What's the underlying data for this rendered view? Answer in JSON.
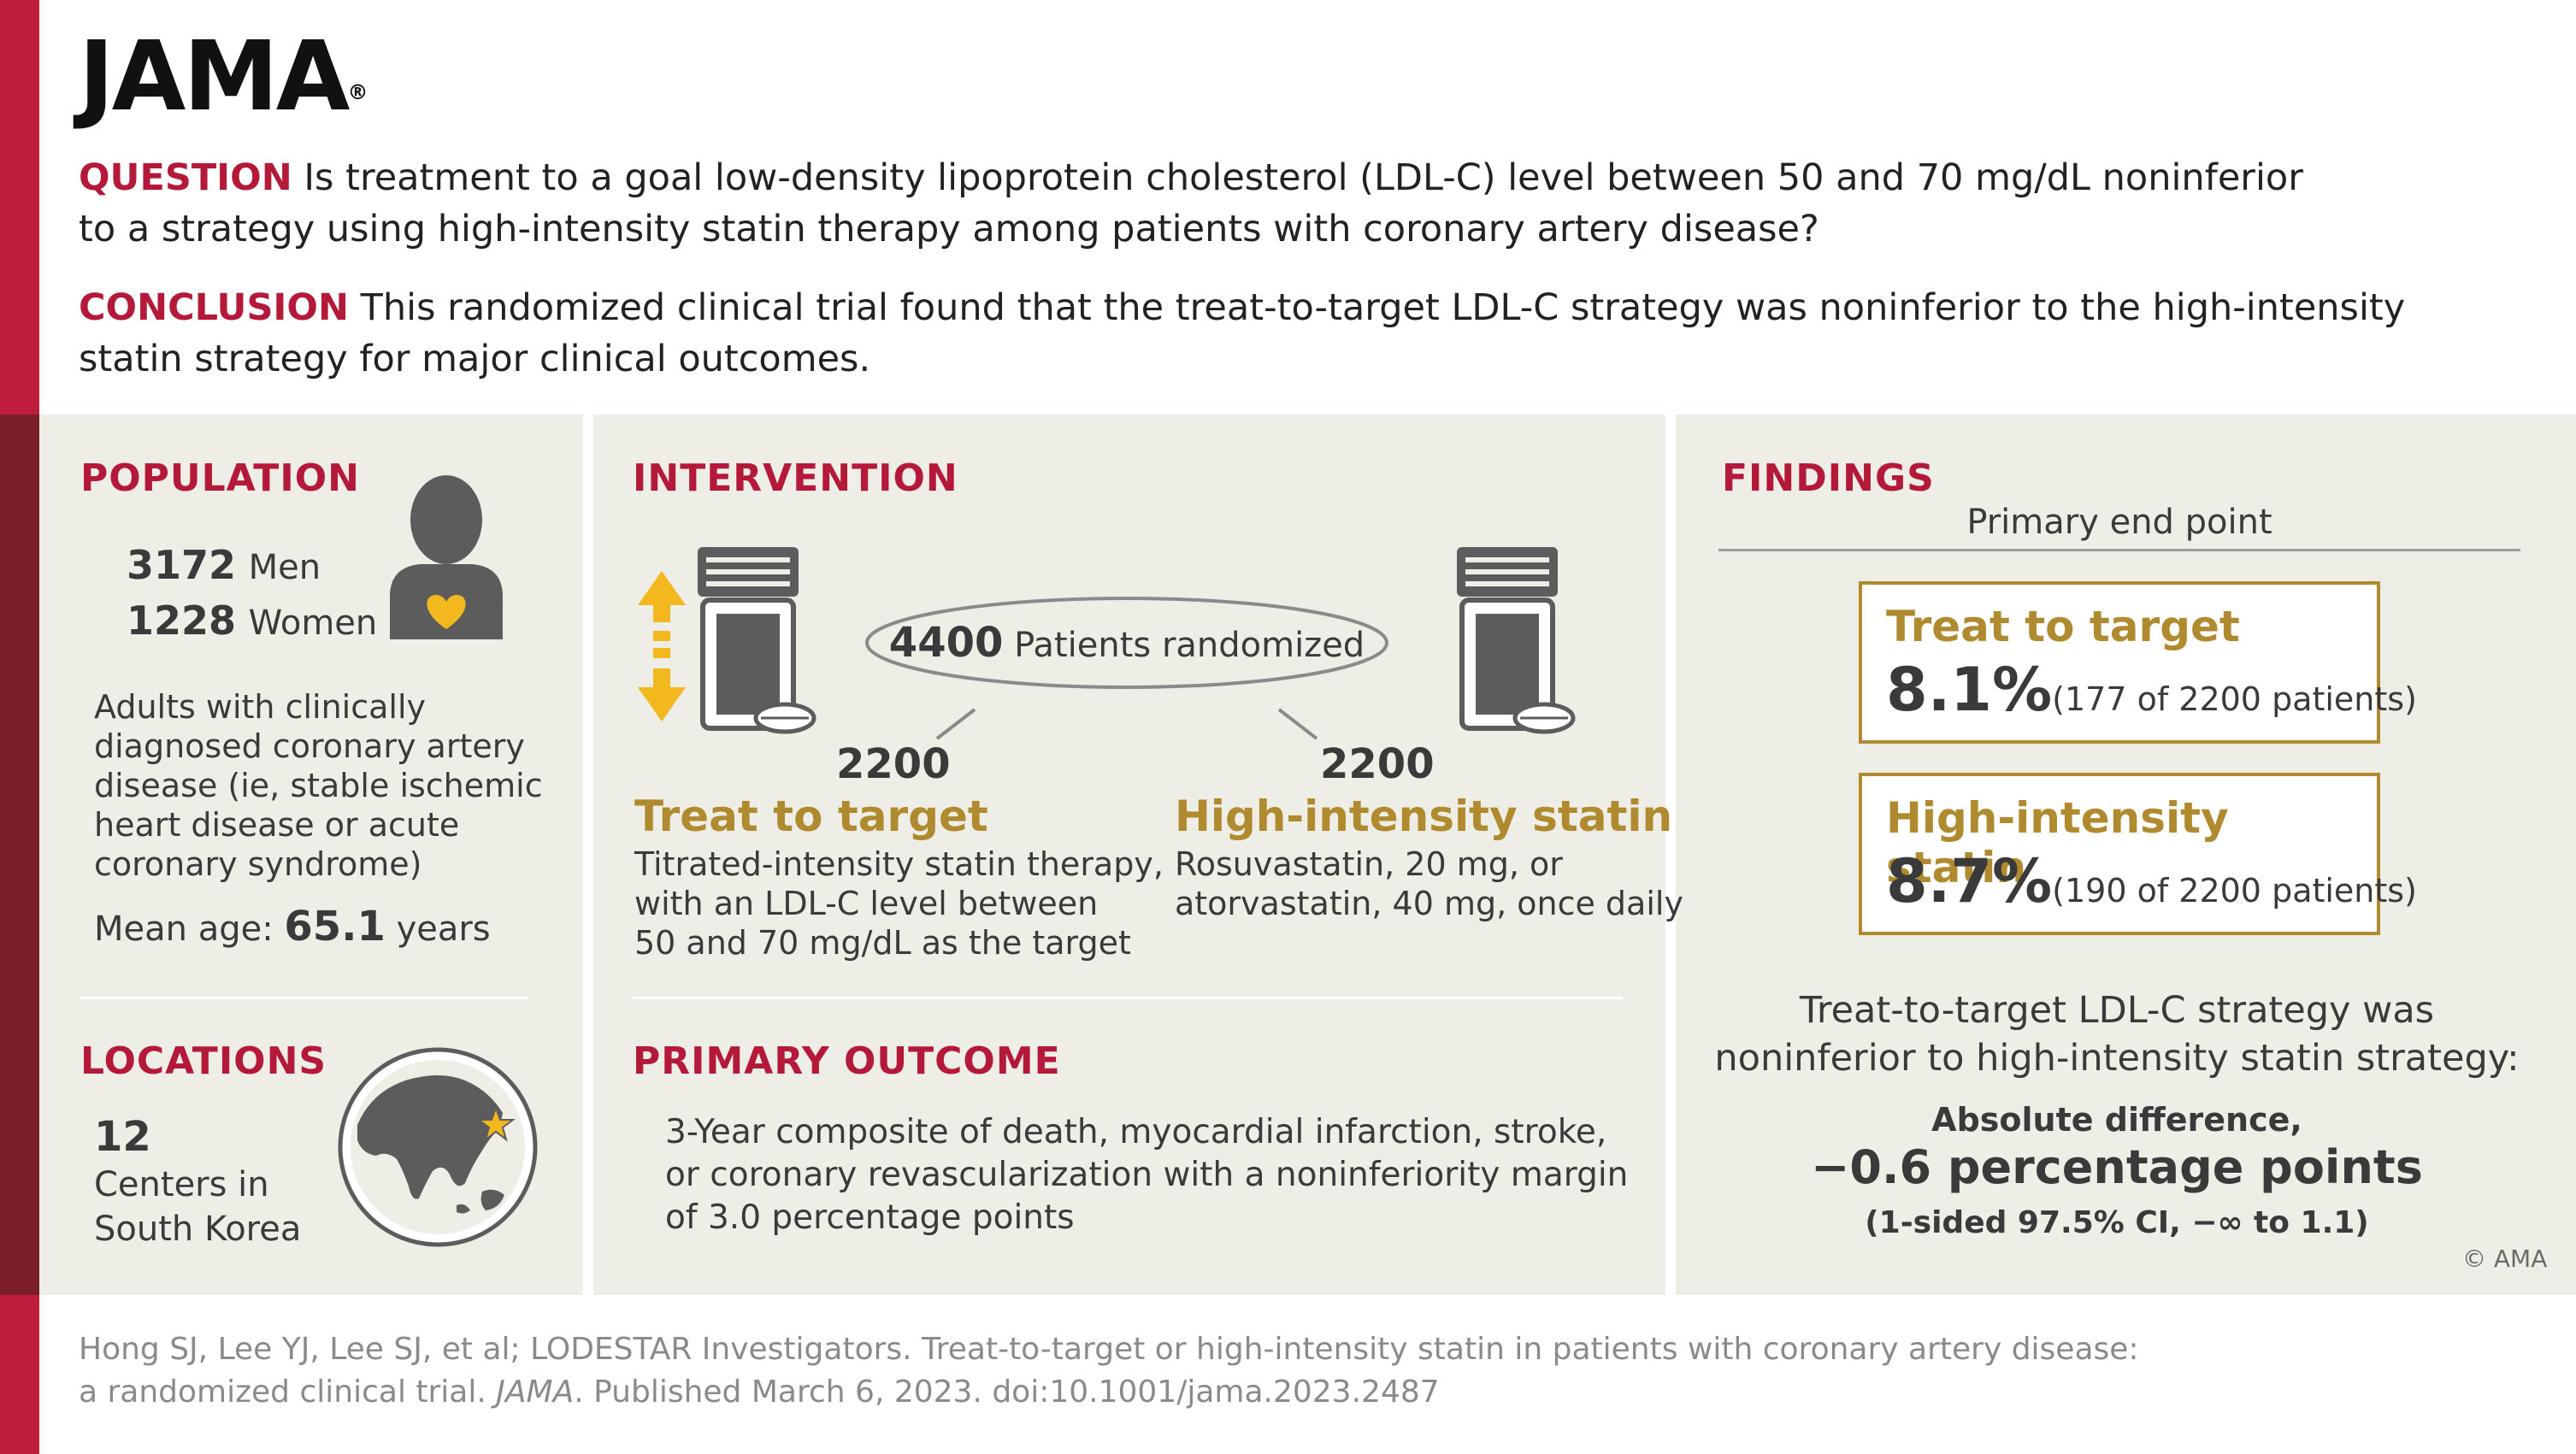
{
  "brand": {
    "logo": "JAMA",
    "reg": "®"
  },
  "header": {
    "question_label": "QUESTION",
    "question_line1": "Is treatment to a goal low-density lipoprotein cholesterol (LDL-C) level between 50 and 70 mg/dL noninferior",
    "question_line2": "to a strategy using high-intensity statin therapy among patients with coronary artery disease?",
    "conclusion_label": "CONCLUSION",
    "conclusion_line1": "This randomized clinical trial found that the treat-to-target LDL-C strategy was noninferior to the high-intensity",
    "conclusion_line2": "statin strategy for major clinical outcomes."
  },
  "population": {
    "title": "POPULATION",
    "men_count": "3172",
    "men_label": "Men",
    "women_count": "1228",
    "women_label": "Women",
    "desc_lines": [
      "Adults with clinically",
      "diagnosed coronary artery",
      "disease (ie, stable ischemic",
      "heart disease or acute",
      "coronary syndrome)"
    ],
    "age_label": "Mean age:",
    "age_value": "65.1",
    "age_unit": "years"
  },
  "locations": {
    "title": "LOCATIONS",
    "count": "12",
    "line1": "Centers in",
    "line2": "South Korea"
  },
  "intervention": {
    "title": "INTERVENTION",
    "randomized_count": "4400",
    "randomized_label": "Patients randomized",
    "left": {
      "count": "2200",
      "name": "Treat to target",
      "desc_lines": [
        "Titrated-intensity statin therapy,",
        "with an LDL-C level between",
        "50 and 70 mg/dL as the target"
      ]
    },
    "right": {
      "count": "2200",
      "name": "High-intensity statin",
      "desc_lines": [
        "Rosuvastatin, 20 mg, or",
        "atorvastatin, 40 mg, once daily"
      ]
    }
  },
  "outcome": {
    "title": "PRIMARY OUTCOME",
    "lines": [
      "3-Year composite of death, myocardial infarction, stroke,",
      "or coronary revascularization with a noninferiority margin",
      "of 3.0 percentage points"
    ]
  },
  "findings": {
    "title": "FINDINGS",
    "subtitle": "Primary end point",
    "box1": {
      "name": "Treat to target",
      "pct": "8.1%",
      "detail": "(177 of 2200 patients)"
    },
    "box2": {
      "name": "High-intensity statin",
      "pct": "8.7%",
      "detail": "(190 of 2200 patients)"
    },
    "summary_line1": "Treat-to-target LDL-C strategy was",
    "summary_line2": "noninferior to high-intensity statin strategy:",
    "diff_label": "Absolute difference,",
    "diff_value": "−0.6 percentage points",
    "ci": "(1-sided 97.5% CI, −∞ to 1.1)",
    "copyright": "© AMA"
  },
  "citation": {
    "line1": "Hong SJ, Lee YJ, Lee SJ, et al; LODESTAR Investigators. Treat-to-target or high-intensity statin in patients with coronary artery disease:",
    "line2_a": "a randomized clinical trial.",
    "line2_journal": "JAMA",
    "line2_b": ". Published March 6, 2023. doi:10.1001/jama.2023.2487"
  },
  "colors": {
    "accent_red": "#be1e3c",
    "dark_red": "#7a1f2a",
    "gold": "#b08a2e",
    "panel": "#eeede6",
    "icon_gray": "#5c5c5c",
    "heart": "#f2b81e"
  }
}
